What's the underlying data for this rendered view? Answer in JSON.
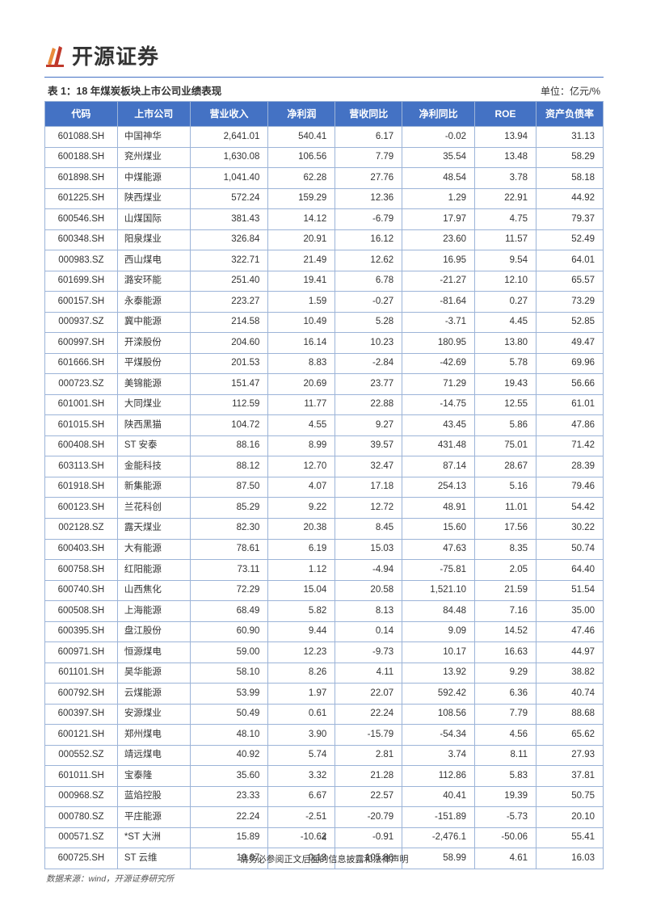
{
  "brand": {
    "name": "开源证券",
    "logo_colors": {
      "orange": "#e98a3a",
      "red": "#c0392b"
    }
  },
  "title": {
    "caption": "表 1：18 年煤炭板块上市公司业绩表现",
    "unit": "单位：亿元/%"
  },
  "table": {
    "header_bg": "#4472c4",
    "header_fg": "#ffffff",
    "border_color": "#9cb4d8",
    "columns": [
      "代码",
      "上市公司",
      "营业收入",
      "净利润",
      "营收同比",
      "净利同比",
      "ROE",
      "资产负债率"
    ],
    "rows": [
      [
        "601088.SH",
        "中国神华",
        "2,641.01",
        "540.41",
        "6.17",
        "-0.02",
        "13.94",
        "31.13"
      ],
      [
        "600188.SH",
        "兖州煤业",
        "1,630.08",
        "106.56",
        "7.79",
        "35.54",
        "13.48",
        "58.29"
      ],
      [
        "601898.SH",
        "中煤能源",
        "1,041.40",
        "62.28",
        "27.76",
        "48.54",
        "3.78",
        "58.18"
      ],
      [
        "601225.SH",
        "陕西煤业",
        "572.24",
        "159.29",
        "12.36",
        "1.29",
        "22.91",
        "44.92"
      ],
      [
        "600546.SH",
        "山煤国际",
        "381.43",
        "14.12",
        "-6.79",
        "17.97",
        "4.75",
        "79.37"
      ],
      [
        "600348.SH",
        "阳泉煤业",
        "326.84",
        "20.91",
        "16.12",
        "23.60",
        "11.57",
        "52.49"
      ],
      [
        "000983.SZ",
        "西山煤电",
        "322.71",
        "21.49",
        "12.62",
        "16.95",
        "9.54",
        "64.01"
      ],
      [
        "601699.SH",
        "潞安环能",
        "251.40",
        "19.41",
        "6.78",
        "-21.27",
        "12.10",
        "65.57"
      ],
      [
        "600157.SH",
        "永泰能源",
        "223.27",
        "1.59",
        "-0.27",
        "-81.64",
        "0.27",
        "73.29"
      ],
      [
        "000937.SZ",
        "冀中能源",
        "214.58",
        "10.49",
        "5.28",
        "-3.71",
        "4.45",
        "52.85"
      ],
      [
        "600997.SH",
        "开滦股份",
        "204.60",
        "16.14",
        "10.23",
        "180.95",
        "13.80",
        "49.47"
      ],
      [
        "601666.SH",
        "平煤股份",
        "201.53",
        "8.83",
        "-2.84",
        "-42.69",
        "5.78",
        "69.96"
      ],
      [
        "000723.SZ",
        "美锦能源",
        "151.47",
        "20.69",
        "23.77",
        "71.29",
        "19.43",
        "56.66"
      ],
      [
        "601001.SH",
        "大同煤业",
        "112.59",
        "11.77",
        "22.88",
        "-14.75",
        "12.55",
        "61.01"
      ],
      [
        "601015.SH",
        "陕西黑猫",
        "104.72",
        "4.55",
        "9.27",
        "43.45",
        "5.86",
        "47.86"
      ],
      [
        "600408.SH",
        "ST 安泰",
        "88.16",
        "8.99",
        "39.57",
        "431.48",
        "75.01",
        "71.42"
      ],
      [
        "603113.SH",
        "金能科技",
        "88.12",
        "12.70",
        "32.47",
        "87.14",
        "28.67",
        "28.39"
      ],
      [
        "601918.SH",
        "新集能源",
        "87.50",
        "4.07",
        "17.18",
        "254.13",
        "5.16",
        "79.46"
      ],
      [
        "600123.SH",
        "兰花科创",
        "85.29",
        "9.22",
        "12.72",
        "48.91",
        "11.01",
        "54.42"
      ],
      [
        "002128.SZ",
        "露天煤业",
        "82.30",
        "20.38",
        "8.45",
        "15.60",
        "17.56",
        "30.22"
      ],
      [
        "600403.SH",
        "大有能源",
        "78.61",
        "6.19",
        "15.03",
        "47.63",
        "8.35",
        "50.74"
      ],
      [
        "600758.SH",
        "红阳能源",
        "73.11",
        "1.12",
        "-4.94",
        "-75.81",
        "2.05",
        "64.40"
      ],
      [
        "600740.SH",
        "山西焦化",
        "72.29",
        "15.04",
        "20.58",
        "1,521.10",
        "21.59",
        "51.54"
      ],
      [
        "600508.SH",
        "上海能源",
        "68.49",
        "5.82",
        "8.13",
        "84.48",
        "7.16",
        "35.00"
      ],
      [
        "600395.SH",
        "盘江股份",
        "60.90",
        "9.44",
        "0.14",
        "9.09",
        "14.52",
        "47.46"
      ],
      [
        "600971.SH",
        "恒源煤电",
        "59.00",
        "12.23",
        "-9.73",
        "10.17",
        "16.63",
        "44.97"
      ],
      [
        "601101.SH",
        "昊华能源",
        "58.10",
        "8.26",
        "4.11",
        "13.92",
        "9.29",
        "38.82"
      ],
      [
        "600792.SH",
        "云煤能源",
        "53.99",
        "1.97",
        "22.07",
        "592.42",
        "6.36",
        "40.74"
      ],
      [
        "600397.SH",
        "安源煤业",
        "50.49",
        "0.61",
        "22.24",
        "108.56",
        "7.79",
        "88.68"
      ],
      [
        "600121.SH",
        "郑州煤电",
        "48.10",
        "3.90",
        "-15.79",
        "-54.34",
        "4.56",
        "65.62"
      ],
      [
        "000552.SZ",
        "靖远煤电",
        "40.92",
        "5.74",
        "2.81",
        "3.74",
        "8.11",
        "27.93"
      ],
      [
        "601011.SH",
        "宝泰隆",
        "35.60",
        "3.32",
        "21.28",
        "112.86",
        "5.83",
        "37.81"
      ],
      [
        "000968.SZ",
        "蓝焰控股",
        "23.33",
        "6.67",
        "22.57",
        "40.41",
        "19.39",
        "50.75"
      ],
      [
        "000780.SZ",
        "平庄能源",
        "22.24",
        "-2.51",
        "-20.79",
        "-151.89",
        "-5.73",
        "20.10"
      ],
      [
        "000571.SZ",
        "*ST 大洲",
        "15.89",
        "-10.62",
        "-0.91",
        "-2,476.1",
        "-50.06",
        "55.41"
      ],
      [
        "600725.SH",
        "ST 云维",
        "10.07",
        "0.13",
        "105.86",
        "58.99",
        "4.61",
        "16.03"
      ]
    ]
  },
  "source": "数据来源：wind，开源证券研究所",
  "footer": {
    "page_num": "4",
    "disclaimer": "请务必参阅正文后面的信息披露和法律声明"
  }
}
